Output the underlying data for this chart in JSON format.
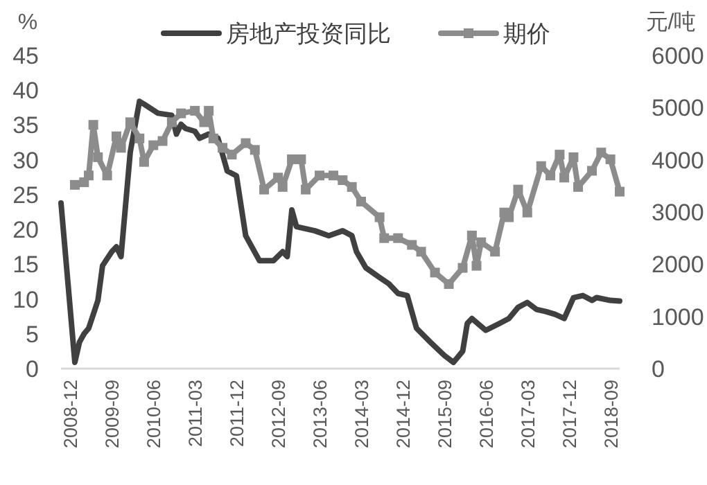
{
  "chart_data": {
    "type": "line",
    "ylabel": "%",
    "y2label": "元/吨",
    "xlim": [
      "2008-10",
      "2018-11"
    ],
    "xticks": [
      "2008-12",
      "2009-09",
      "2010-06",
      "2011-03",
      "2011-12",
      "2012-09",
      "2013-06",
      "2014-03",
      "2014-12",
      "2015-09",
      "2016-06",
      "2017-03",
      "2017-12",
      "2018-09"
    ],
    "ylim": [
      0,
      45
    ],
    "yticks": [
      0,
      5,
      10,
      15,
      20,
      25,
      30,
      35,
      40,
      45
    ],
    "y2lim": [
      0,
      6000
    ],
    "y2ticks": [
      0,
      1000,
      2000,
      3000,
      4000,
      5000,
      6000
    ],
    "grid": false,
    "legend": "top",
    "series": [
      {
        "name": "房地产投资同比",
        "color": "#404040",
        "marker": "none",
        "x": [
          "2008-10",
          "2009-01",
          "2009-02",
          "2009-03",
          "2009-04",
          "2009-05",
          "2009-06",
          "2009-07",
          "2009-09",
          "2009-10",
          "2009-11",
          "2010-01",
          "2010-03",
          "2010-04",
          "2010-07",
          "2010-10",
          "2010-11",
          "2010-12",
          "2011-01",
          "2011-03",
          "2011-04",
          "2011-06",
          "2011-08",
          "2011-10",
          "2011-12",
          "2012-02",
          "2012-05",
          "2012-08",
          "2012-10",
          "2012-11",
          "2012-12",
          "2013-01",
          "2013-05",
          "2013-08",
          "2013-11",
          "2014-01",
          "2014-02",
          "2014-04",
          "2014-07",
          "2014-09",
          "2014-11",
          "2015-01",
          "2015-03",
          "2015-06",
          "2015-09",
          "2015-11",
          "2016-01",
          "2016-02",
          "2016-03",
          "2016-06",
          "2016-09",
          "2016-11",
          "2017-01",
          "2017-03",
          "2017-05",
          "2017-07",
          "2017-09",
          "2017-11",
          "2018-01",
          "2018-03",
          "2018-05",
          "2018-06",
          "2018-09",
          "2018-11"
        ],
        "values": [
          23.8,
          0.9,
          3.8,
          5,
          5.8,
          7.8,
          9.8,
          14.8,
          16.8,
          17.5,
          16.1,
          31.1,
          38.4,
          38,
          36.7,
          36.4,
          33.7,
          35.1,
          34.5,
          34.1,
          33.1,
          33.7,
          33.1,
          28.4,
          27.7,
          19.1,
          15.5,
          15.5,
          16.8,
          16.1,
          22.8,
          20.4,
          19.8,
          19.1,
          19.8,
          19.1,
          16.8,
          14.5,
          13.1,
          12.2,
          10.8,
          10.5,
          5.8,
          3.8,
          1.9,
          0.9,
          2.5,
          6.5,
          7.2,
          5.5,
          6.5,
          7.2,
          8.8,
          9.5,
          8.5,
          8.2,
          7.8,
          7.2,
          10.2,
          10.5,
          9.8,
          10.2,
          9.8,
          9.7
        ]
      },
      {
        "name": "期价",
        "color": "#8c8c8c",
        "marker": "square",
        "axis": "y2",
        "x": [
          "2009-01",
          "2009-03",
          "2009-04",
          "2009-05",
          "2009-06",
          "2009-08",
          "2009-10",
          "2009-11",
          "2010-01",
          "2010-03",
          "2010-04",
          "2010-06",
          "2010-08",
          "2010-10",
          "2010-12",
          "2011-03",
          "2011-05",
          "2011-06",
          "2011-07",
          "2011-09",
          "2011-11",
          "2012-02",
          "2012-04",
          "2012-06",
          "2012-09",
          "2012-10",
          "2012-12",
          "2013-02",
          "2013-03",
          "2013-06",
          "2013-09",
          "2013-11",
          "2014-01",
          "2014-03",
          "2014-07",
          "2014-08",
          "2014-11",
          "2015-02",
          "2015-04",
          "2015-07",
          "2015-10",
          "2016-01",
          "2016-03",
          "2016-04",
          "2016-05",
          "2016-08",
          "2016-10",
          "2016-11",
          "2017-01",
          "2017-03",
          "2017-06",
          "2017-08",
          "2017-10",
          "2017-11",
          "2018-01",
          "2018-02",
          "2018-05",
          "2018-07",
          "2018-09",
          "2018-11"
        ],
        "values": [
          3520,
          3570,
          3700,
          4670,
          4050,
          3700,
          4450,
          4230,
          4720,
          4410,
          3960,
          4280,
          4360,
          4720,
          4890,
          4940,
          4720,
          4940,
          4410,
          4230,
          4100,
          4320,
          4190,
          3430,
          3660,
          3480,
          4010,
          4010,
          3430,
          3700,
          3700,
          3610,
          3480,
          3200,
          2900,
          2500,
          2500,
          2370,
          2240,
          1840,
          1620,
          1930,
          2550,
          1970,
          2420,
          2240,
          2990,
          2900,
          3430,
          2990,
          3880,
          3700,
          4100,
          3660,
          4050,
          3480,
          3790,
          4140,
          4010,
          3390
        ]
      }
    ]
  }
}
